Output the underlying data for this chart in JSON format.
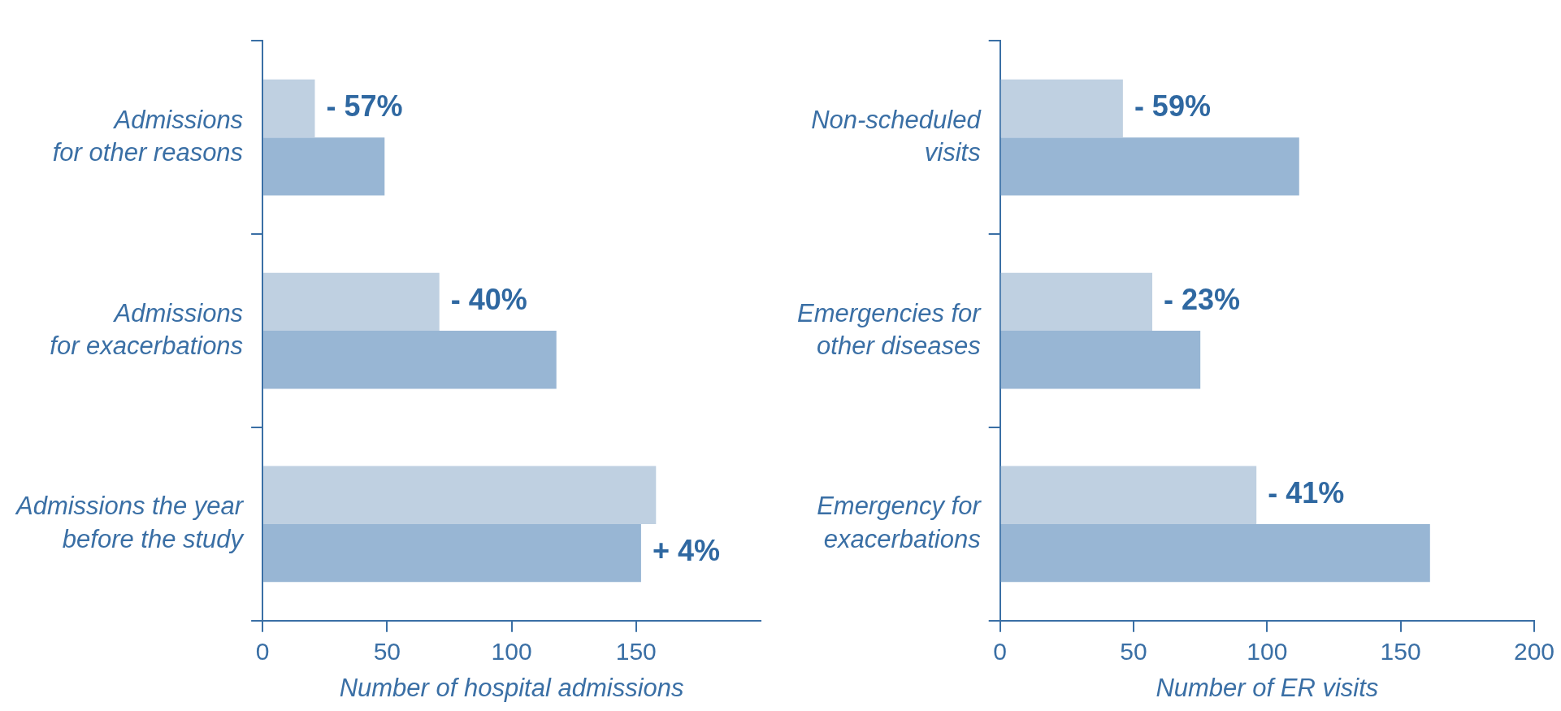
{
  "chart_data": [
    {
      "type": "bar",
      "orientation": "horizontal",
      "xlabel": "Number of hospital admissions",
      "categories": [
        "Admissions\nfor other reasons",
        "Admissions\nfor exacerbations",
        "Admissions the year\nbefore the study"
      ],
      "series": [
        {
          "color": "#bfd0e1",
          "values": [
            21,
            71,
            158
          ]
        },
        {
          "color": "#98b6d4",
          "values": [
            49,
            118,
            152
          ]
        }
      ],
      "xlim": [
        0,
        200
      ],
      "xticks": [
        0,
        50,
        100,
        150
      ],
      "grid": false,
      "legend": false,
      "annotations": [
        {
          "text": "- 57%",
          "x": 21,
          "y": "Admissions\nfor other reasons"
        },
        {
          "text": "- 40%",
          "x": 71,
          "y": "Admissions\nfor exacerbations"
        },
        {
          "text": "+ 4%",
          "x": 152,
          "y": "Admissions the year\nbefore the study"
        }
      ]
    },
    {
      "type": "bar",
      "orientation": "horizontal",
      "xlabel": "Number of ER visits",
      "categories": [
        "Non-scheduled\nvisits",
        "Emergencies for\nother diseases",
        "Emergency for\nexacerbations"
      ],
      "series": [
        {
          "color": "#bfd0e1",
          "values": [
            46,
            57,
            96
          ]
        },
        {
          "color": "#98b6d4",
          "values": [
            112,
            75,
            161
          ]
        }
      ],
      "xlim": [
        0,
        200
      ],
      "xticks": [
        0,
        50,
        100,
        150,
        200
      ],
      "grid": false,
      "legend": false,
      "annotations": [
        {
          "text": "- 59%",
          "x": 46,
          "y": "Non-scheduled\nvisits"
        },
        {
          "text": "- 23%",
          "x": 57,
          "y": "Emergencies for\nother diseases"
        },
        {
          "text": "- 41%",
          "x": 96,
          "y": "Emergency for\nexacerbations"
        }
      ]
    }
  ]
}
